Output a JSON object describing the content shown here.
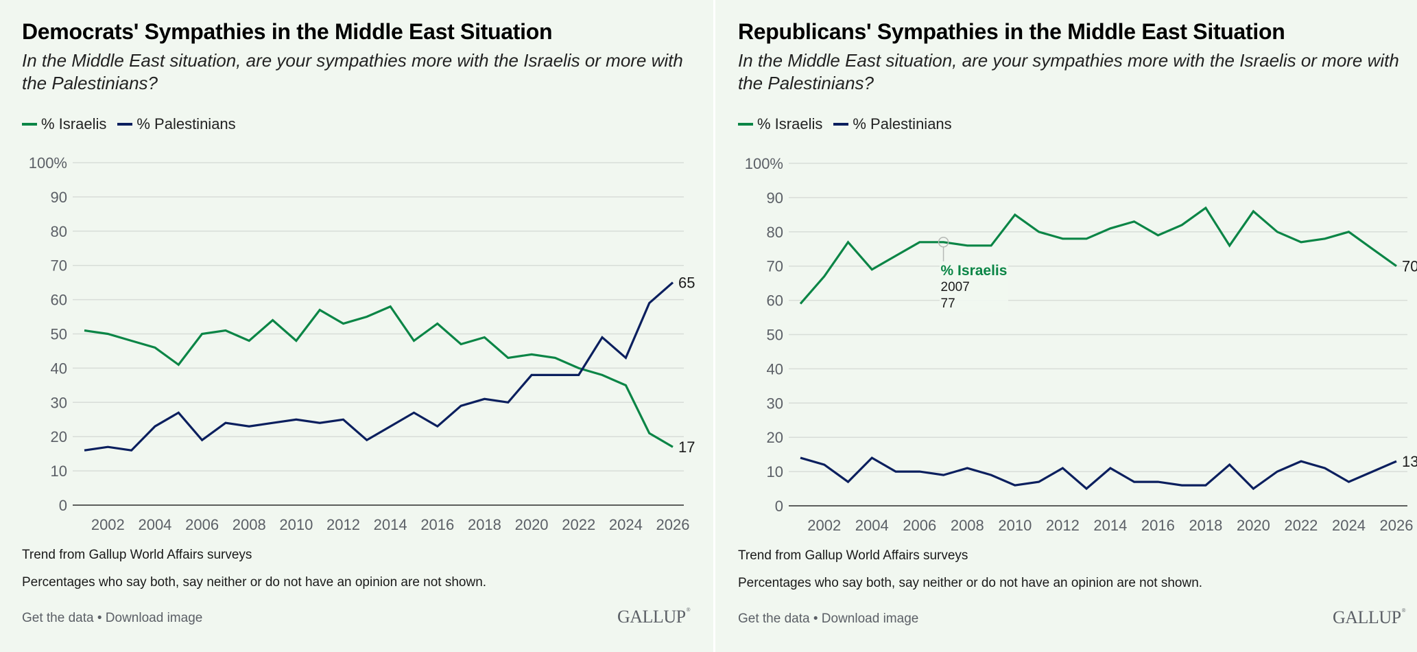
{
  "colors": {
    "israelis": "#0b8546",
    "palestinians": "#0b1f5e",
    "grid": "#d8ddd8",
    "axis": "#2b2b2b",
    "background": "#f1f7f0"
  },
  "panels": [
    {
      "title": "Democrats' Sympathies in the Middle East Situation",
      "subtitle": "In the Middle East situation, are your sympathies more with the Israelis or more with the Palestinians?",
      "legend": [
        {
          "label": "% Israelis",
          "series": "israelis"
        },
        {
          "label": "% Palestinians",
          "series": "palestinians"
        }
      ],
      "notes": [
        "Trend from Gallup World Affairs surveys",
        "Percentages who say both, say neither or do not have an opinion are not shown."
      ],
      "links": {
        "get_data": "Get the data",
        "separator": " • ",
        "download": "Download image"
      },
      "logo": "GALLUP",
      "end_labels": {
        "israelis": "17",
        "palestinians": "65"
      }
    },
    {
      "title": "Republicans' Sympathies in the Middle East Situation",
      "subtitle": "In the Middle East situation, are your sympathies more with the Israelis or more with the Palestinians?",
      "legend": [
        {
          "label": "% Israelis",
          "series": "israelis"
        },
        {
          "label": "% Palestinians",
          "series": "palestinians"
        }
      ],
      "notes": [
        "Trend from Gallup World Affairs surveys",
        "Percentages who say both, say neither or do not have an opinion are not shown."
      ],
      "links": {
        "get_data": "Get the data",
        "separator": " • ",
        "download": "Download image"
      },
      "logo": "GALLUP",
      "end_labels": {
        "israelis": "70",
        "palestinians": "13"
      },
      "tooltip": {
        "series": "% Israelis",
        "year": "2007",
        "value": "77"
      }
    }
  ],
  "chart_data": [
    {
      "type": "line",
      "title": "Democrats' Sympathies in the Middle East Situation",
      "subtitle": "In the Middle East situation, are your sympathies more with the Israelis or more with the Palestinians?",
      "xlabel": "",
      "ylabel": "",
      "x": [
        2001,
        2002,
        2003,
        2004,
        2005,
        2006,
        2007,
        2008,
        2009,
        2010,
        2011,
        2012,
        2013,
        2014,
        2015,
        2016,
        2017,
        2018,
        2019,
        2020,
        2021,
        2022,
        2023,
        2024,
        2025,
        2026
      ],
      "series": [
        {
          "name": "% Israelis",
          "key": "israelis",
          "values": [
            51,
            50,
            48,
            46,
            41,
            50,
            51,
            48,
            54,
            48,
            57,
            53,
            55,
            58,
            48,
            53,
            47,
            49,
            43,
            44,
            43,
            40,
            38,
            35,
            21,
            17
          ]
        },
        {
          "name": "% Palestinians",
          "key": "palestinians",
          "values": [
            16,
            17,
            16,
            23,
            27,
            19,
            24,
            23,
            24,
            25,
            24,
            25,
            19,
            23,
            27,
            23,
            29,
            31,
            30,
            38,
            38,
            38,
            49,
            43,
            59,
            65
          ]
        }
      ],
      "ylim": [
        0,
        100
      ],
      "yticks": [
        0,
        10,
        20,
        30,
        40,
        50,
        60,
        70,
        80,
        90,
        100
      ],
      "ytick_labels": [
        "0",
        "10",
        "20",
        "30",
        "40",
        "50",
        "60",
        "70",
        "80",
        "90",
        "100%"
      ],
      "xticks": [
        2002,
        2004,
        2006,
        2008,
        2010,
        2012,
        2014,
        2016,
        2018,
        2020,
        2022,
        2024,
        2026
      ],
      "xtick_labels": [
        "2002",
        "2004",
        "2006",
        "2008",
        "2010",
        "2012",
        "2014",
        "2016",
        "2018",
        "2020",
        "2022",
        "2024",
        "2026"
      ],
      "grid": true,
      "legend_position": "top-left"
    },
    {
      "type": "line",
      "title": "Republicans' Sympathies in the Middle East Situation",
      "subtitle": "In the Middle East situation, are your sympathies more with the Israelis or more with the Palestinians?",
      "xlabel": "",
      "ylabel": "",
      "x": [
        2001,
        2002,
        2003,
        2004,
        2005,
        2006,
        2007,
        2008,
        2009,
        2010,
        2011,
        2012,
        2013,
        2014,
        2015,
        2016,
        2017,
        2018,
        2019,
        2020,
        2021,
        2022,
        2023,
        2024,
        2025,
        2026
      ],
      "series": [
        {
          "name": "% Israelis",
          "key": "israelis",
          "values": [
            59,
            67,
            77,
            69,
            73,
            77,
            77,
            76,
            76,
            85,
            80,
            78,
            78,
            81,
            83,
            79,
            82,
            87,
            76,
            86,
            80,
            77,
            78,
            80,
            75,
            70
          ]
        },
        {
          "name": "% Palestinians",
          "key": "palestinians",
          "values": [
            14,
            12,
            7,
            14,
            10,
            10,
            9,
            11,
            9,
            6,
            7,
            11,
            5,
            11,
            7,
            7,
            6,
            6,
            12,
            5,
            10,
            13,
            11,
            7,
            10,
            13
          ]
        }
      ],
      "ylim": [
        0,
        100
      ],
      "yticks": [
        0,
        10,
        20,
        30,
        40,
        50,
        60,
        70,
        80,
        90,
        100
      ],
      "ytick_labels": [
        "0",
        "10",
        "20",
        "30",
        "40",
        "50",
        "60",
        "70",
        "80",
        "90",
        "100%"
      ],
      "xticks": [
        2002,
        2004,
        2006,
        2008,
        2010,
        2012,
        2014,
        2016,
        2018,
        2020,
        2022,
        2024,
        2026
      ],
      "xtick_labels": [
        "2002",
        "2004",
        "2006",
        "2008",
        "2010",
        "2012",
        "2014",
        "2016",
        "2018",
        "2020",
        "2022",
        "2024",
        "2026"
      ],
      "grid": true,
      "legend_position": "top-left",
      "highlighted_point": {
        "series": "% Israelis",
        "x": 2007,
        "y": 77
      }
    }
  ]
}
